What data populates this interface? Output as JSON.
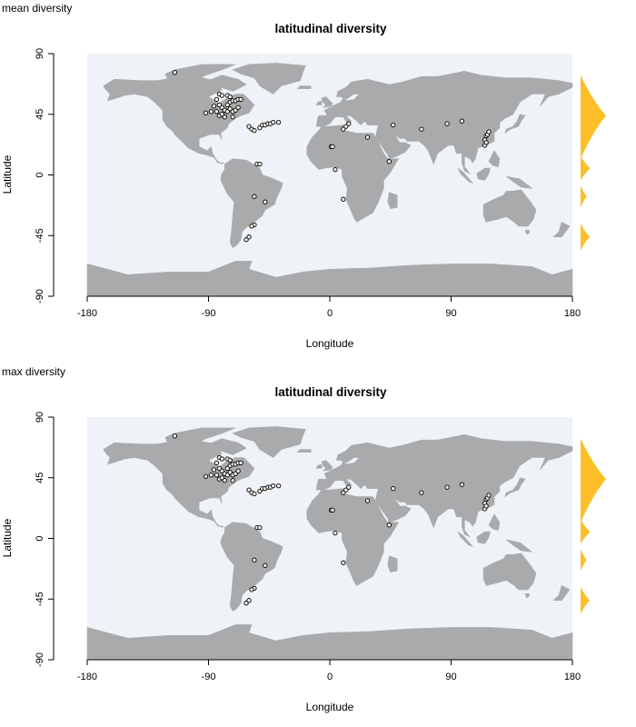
{
  "colors": {
    "ocean": "#eff3f8",
    "land": "#a8aaac",
    "kde": "#fcbf27",
    "point_fill": "#f2f0e6",
    "point_stroke": "#000000",
    "axis": "#000000"
  },
  "chart_data": [
    {
      "type": "scatter",
      "subtype": "map",
      "corner_label": "mean diversity",
      "title": "latitudinal diversity",
      "xlabel": "Longitude",
      "ylabel": "Latitude",
      "xlim": [
        -180,
        180
      ],
      "ylim": [
        -90,
        90
      ],
      "xticks": [
        "-180",
        "-90",
        "0",
        "90",
        "180"
      ],
      "yticks": [
        "-90",
        "-45",
        "0",
        "45",
        "90"
      ],
      "grid": false,
      "points": [
        [
          -115,
          76
        ],
        [
          -92,
          46
        ],
        [
          -88,
          47
        ],
        [
          -86,
          51
        ],
        [
          -84,
          56
        ],
        [
          -82,
          60
        ],
        [
          -80,
          59
        ],
        [
          -76,
          59
        ],
        [
          -74,
          58
        ],
        [
          -84,
          47
        ],
        [
          -82,
          44
        ],
        [
          -80,
          50
        ],
        [
          -78,
          48
        ],
        [
          -76,
          52
        ],
        [
          -74,
          54
        ],
        [
          -72,
          55
        ],
        [
          -70,
          55
        ],
        [
          -68,
          56
        ],
        [
          -66,
          56
        ],
        [
          -82,
          52
        ],
        [
          -80,
          45
        ],
        [
          -78,
          43
        ],
        [
          -76,
          47
        ],
        [
          -74,
          49
        ],
        [
          -72,
          47
        ],
        [
          -70,
          48
        ],
        [
          -68,
          50
        ],
        [
          -72,
          43
        ],
        [
          -60,
          36
        ],
        [
          -58,
          34
        ],
        [
          -56,
          33
        ],
        [
          -52,
          35
        ],
        [
          -50,
          37
        ],
        [
          -48,
          37
        ],
        [
          -46,
          38
        ],
        [
          -44,
          38
        ],
        [
          -42,
          39
        ],
        [
          -38,
          39
        ],
        [
          -54,
          8
        ],
        [
          -52,
          8
        ],
        [
          -56,
          -16
        ],
        [
          -48,
          -20
        ],
        [
          -56,
          -37
        ],
        [
          -58,
          -38
        ],
        [
          -60,
          -46
        ],
        [
          -62,
          -48
        ],
        [
          1,
          21
        ],
        [
          2,
          21
        ],
        [
          4,
          4
        ],
        [
          10,
          -18
        ],
        [
          10,
          34
        ],
        [
          12,
          36
        ],
        [
          14,
          38
        ],
        [
          28,
          28
        ],
        [
          44,
          10
        ],
        [
          47,
          37
        ],
        [
          68,
          34
        ],
        [
          87,
          38
        ],
        [
          98,
          40
        ],
        [
          115,
          26
        ],
        [
          116,
          29
        ],
        [
          117,
          30
        ],
        [
          118,
          32
        ],
        [
          115,
          22
        ],
        [
          116,
          24
        ]
      ],
      "kde": [
        {
          "lat_from": 12,
          "lat_to": 74,
          "peak_lat": 44,
          "strength": 1.0
        },
        {
          "lat_from": -4,
          "lat_to": 14,
          "peak_lat": 5,
          "strength": 0.38
        },
        {
          "lat_from": -24,
          "lat_to": -8,
          "peak_lat": -16,
          "strength": 0.24
        },
        {
          "lat_from": -56,
          "lat_to": -36,
          "peak_lat": -46,
          "strength": 0.36
        }
      ]
    },
    {
      "type": "scatter",
      "subtype": "map",
      "corner_label": "max diversity",
      "title": "latitudinal diversity",
      "xlabel": "Longitude",
      "ylabel": "Latitude",
      "xlim": [
        -180,
        180
      ],
      "ylim": [
        -90,
        90
      ],
      "xticks": [
        "-180",
        "-90",
        "0",
        "90",
        "180"
      ],
      "yticks": [
        "-90",
        "-45",
        "0",
        "45",
        "90"
      ],
      "grid": false,
      "points": [
        [
          -115,
          76
        ],
        [
          -92,
          46
        ],
        [
          -88,
          47
        ],
        [
          -86,
          51
        ],
        [
          -84,
          56
        ],
        [
          -82,
          60
        ],
        [
          -80,
          59
        ],
        [
          -76,
          59
        ],
        [
          -74,
          58
        ],
        [
          -84,
          47
        ],
        [
          -82,
          44
        ],
        [
          -80,
          50
        ],
        [
          -78,
          48
        ],
        [
          -76,
          52
        ],
        [
          -74,
          54
        ],
        [
          -72,
          55
        ],
        [
          -70,
          55
        ],
        [
          -68,
          56
        ],
        [
          -66,
          56
        ],
        [
          -82,
          52
        ],
        [
          -80,
          45
        ],
        [
          -78,
          43
        ],
        [
          -76,
          47
        ],
        [
          -74,
          49
        ],
        [
          -72,
          47
        ],
        [
          -70,
          48
        ],
        [
          -68,
          50
        ],
        [
          -72,
          43
        ],
        [
          -60,
          36
        ],
        [
          -58,
          34
        ],
        [
          -56,
          33
        ],
        [
          -52,
          35
        ],
        [
          -50,
          37
        ],
        [
          -48,
          37
        ],
        [
          -46,
          38
        ],
        [
          -44,
          38
        ],
        [
          -42,
          39
        ],
        [
          -38,
          39
        ],
        [
          -54,
          8
        ],
        [
          -52,
          8
        ],
        [
          -56,
          -16
        ],
        [
          -48,
          -20
        ],
        [
          -56,
          -37
        ],
        [
          -58,
          -38
        ],
        [
          -60,
          -46
        ],
        [
          -62,
          -48
        ],
        [
          1,
          21
        ],
        [
          2,
          21
        ],
        [
          4,
          4
        ],
        [
          10,
          -18
        ],
        [
          10,
          34
        ],
        [
          12,
          36
        ],
        [
          14,
          38
        ],
        [
          28,
          28
        ],
        [
          44,
          10
        ],
        [
          47,
          37
        ],
        [
          68,
          34
        ],
        [
          87,
          38
        ],
        [
          98,
          40
        ],
        [
          115,
          26
        ],
        [
          116,
          29
        ],
        [
          117,
          30
        ],
        [
          118,
          32
        ],
        [
          115,
          22
        ],
        [
          116,
          24
        ]
      ],
      "kde": [
        {
          "lat_from": 12,
          "lat_to": 74,
          "peak_lat": 44,
          "strength": 1.0
        },
        {
          "lat_from": -4,
          "lat_to": 14,
          "peak_lat": 5,
          "strength": 0.38
        },
        {
          "lat_from": -24,
          "lat_to": -8,
          "peak_lat": -16,
          "strength": 0.24
        },
        {
          "lat_from": -56,
          "lat_to": -36,
          "peak_lat": -46,
          "strength": 0.36
        }
      ]
    }
  ]
}
